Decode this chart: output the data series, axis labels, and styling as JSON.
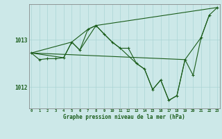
{
  "xlabel": "Graphe pression niveau de la mer (hPa)",
  "bg_color": "#cce8e8",
  "line_color": "#1a5c1a",
  "x_ticks": [
    0,
    1,
    2,
    3,
    4,
    5,
    6,
    7,
    8,
    9,
    10,
    11,
    12,
    13,
    14,
    15,
    16,
    17,
    18,
    19,
    20,
    21,
    22,
    23
  ],
  "yticks": [
    1012,
    1013
  ],
  "ylim": [
    1011.55,
    1013.75
  ],
  "xlim": [
    -0.3,
    23.3
  ],
  "grid_color": "#aad4d4",
  "font_color": "#1a5c1a",
  "line_width": 0.8,
  "marker_size": 3,
  "series1": [
    [
      0,
      1012.72
    ],
    [
      1,
      1012.58
    ],
    [
      2,
      1012.6
    ],
    [
      3,
      1012.6
    ],
    [
      4,
      1012.62
    ],
    [
      5,
      1012.95
    ],
    [
      6,
      1012.78
    ],
    [
      7,
      1013.22
    ],
    [
      8,
      1013.3
    ],
    [
      9,
      1013.12
    ],
    [
      10,
      1012.95
    ],
    [
      11,
      1012.82
    ],
    [
      12,
      1012.82
    ],
    [
      13,
      1012.5
    ],
    [
      14,
      1012.38
    ],
    [
      15,
      1011.95
    ],
    [
      16,
      1012.15
    ],
    [
      17,
      1011.72
    ],
    [
      18,
      1011.82
    ],
    [
      19,
      1012.58
    ],
    [
      20,
      1012.25
    ],
    [
      21,
      1013.05
    ],
    [
      22,
      1013.52
    ],
    [
      23,
      1013.68
    ]
  ],
  "series2": [
    [
      0,
      1012.72
    ],
    [
      19,
      1012.58
    ]
  ],
  "series3": [
    [
      0,
      1012.72
    ],
    [
      5,
      1012.95
    ],
    [
      7,
      1013.22
    ],
    [
      8,
      1013.3
    ],
    [
      9,
      1013.12
    ],
    [
      10,
      1012.95
    ],
    [
      11,
      1012.82
    ],
    [
      13,
      1012.5
    ],
    [
      14,
      1012.38
    ],
    [
      15,
      1011.95
    ],
    [
      16,
      1012.15
    ],
    [
      17,
      1011.72
    ],
    [
      18,
      1011.82
    ],
    [
      19,
      1012.58
    ],
    [
      21,
      1013.05
    ],
    [
      22,
      1013.52
    ]
  ],
  "series4": [
    [
      0,
      1012.72
    ],
    [
      4,
      1012.62
    ],
    [
      5,
      1012.95
    ],
    [
      6,
      1012.78
    ],
    [
      8,
      1013.3
    ],
    [
      23,
      1013.68
    ]
  ]
}
